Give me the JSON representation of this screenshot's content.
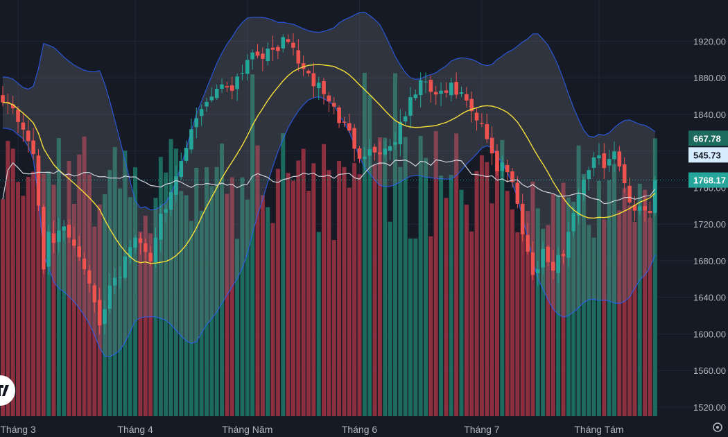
{
  "chart_data": {
    "type": "candlestick",
    "y_axis": {
      "range": [
        1510,
        1965
      ],
      "ticks": [
        "1520.00",
        "1560.00",
        "1600.00",
        "1640.00",
        "1680.00",
        "1720.00",
        "1760.00",
        "1800.00",
        "1840.00",
        "1880.00",
        "1920.00"
      ]
    },
    "x_axis": {
      "labels": [
        {
          "label": "Tháng 3",
          "index": 3
        },
        {
          "label": "Tháng 4",
          "index": 26
        },
        {
          "label": "Tháng Năm",
          "index": 48
        },
        {
          "label": "Tháng 6",
          "index": 70
        },
        {
          "label": "Tháng 7",
          "index": 94
        },
        {
          "label": "Tháng Tám",
          "index": 117
        }
      ]
    },
    "last_price": {
      "value": 1768.17,
      "label": "1768.17"
    },
    "volume_last": {
      "value": 667.78,
      "label": "667.78"
    },
    "volume_ma_last": {
      "value": 545.73,
      "label": "545.73"
    },
    "price_anchors": [
      [
        0,
        1860
      ],
      [
        3,
        1835
      ],
      [
        5,
        1815
      ],
      [
        6,
        1790
      ],
      [
        7,
        1740
      ],
      [
        8,
        1670
      ],
      [
        9,
        1715
      ],
      [
        10,
        1705
      ],
      [
        12,
        1712
      ],
      [
        14,
        1700
      ],
      [
        16,
        1675
      ],
      [
        18,
        1640
      ],
      [
        19,
        1605
      ],
      [
        21,
        1648
      ],
      [
        23,
        1668
      ],
      [
        25,
        1700
      ],
      [
        27,
        1700
      ],
      [
        29,
        1680
      ],
      [
        31,
        1738
      ],
      [
        33,
        1748
      ],
      [
        35,
        1785
      ],
      [
        37,
        1820
      ],
      [
        39,
        1848
      ],
      [
        42,
        1870
      ],
      [
        45,
        1872
      ],
      [
        47,
        1890
      ],
      [
        49,
        1910
      ],
      [
        52,
        1905
      ],
      [
        54,
        1915
      ],
      [
        56,
        1920
      ],
      [
        58,
        1900
      ],
      [
        60,
        1878
      ],
      [
        62,
        1872
      ],
      [
        64,
        1855
      ],
      [
        66,
        1835
      ],
      [
        68,
        1818
      ],
      [
        70,
        1798
      ],
      [
        72,
        1800
      ],
      [
        74,
        1800
      ],
      [
        76,
        1805
      ],
      [
        78,
        1825
      ],
      [
        80,
        1855
      ],
      [
        82,
        1875
      ],
      [
        84,
        1865
      ],
      [
        86,
        1860
      ],
      [
        88,
        1868
      ],
      [
        90,
        1860
      ],
      [
        92,
        1840
      ],
      [
        94,
        1825
      ],
      [
        96,
        1800
      ],
      [
        97,
        1780
      ],
      [
        98,
        1790
      ],
      [
        100,
        1765
      ],
      [
        101,
        1740
      ],
      [
        103,
        1690
      ],
      [
        104,
        1665
      ],
      [
        106,
        1690
      ],
      [
        108,
        1670
      ],
      [
        110,
        1690
      ],
      [
        112,
        1735
      ],
      [
        114,
        1772
      ],
      [
        116,
        1790
      ],
      [
        118,
        1788
      ],
      [
        120,
        1795
      ],
      [
        122,
        1770
      ],
      [
        123,
        1745
      ],
      [
        125,
        1735
      ],
      [
        127,
        1738
      ],
      [
        128,
        1768.17
      ]
    ],
    "bollinger_period": 20,
    "bollinger_stddev": 2,
    "volume_range": [
      0,
      1000
    ]
  }
}
